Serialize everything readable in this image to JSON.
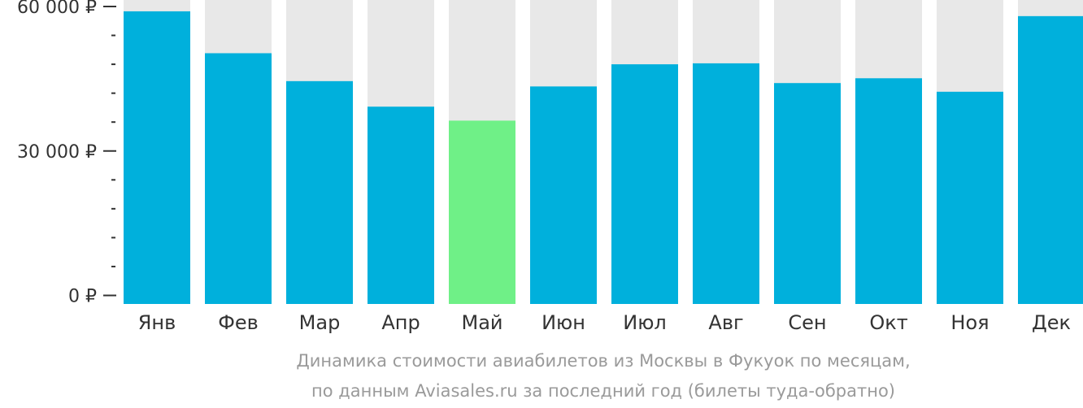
{
  "chart_data": {
    "type": "bar",
    "categories": [
      "Янв",
      "Фев",
      "Мар",
      "Апр",
      "Май",
      "Июн",
      "Июл",
      "Авг",
      "Сен",
      "Окт",
      "Ноя",
      "Дек"
    ],
    "values": [
      59000,
      50300,
      44500,
      39200,
      36300,
      43400,
      48000,
      48200,
      44100,
      45100,
      42300,
      58000
    ],
    "highlight_index": 4,
    "ylim": [
      0,
      62000
    ],
    "yticks": [
      {
        "value": 0,
        "label": "0 ₽"
      },
      {
        "value": 30000,
        "label": "30 000 ₽"
      },
      {
        "value": 60000,
        "label": "60 000 ₽"
      }
    ],
    "minor_tick_step": 6000,
    "caption_line1": "Динамика стоимости авиабилетов из Москвы в Фукуок по месяцам,",
    "caption_line2": "по данным Aviasales.ru за последний год (билеты туда-обратно)",
    "colors": {
      "bar": "#00b0dc",
      "highlight": "#6ff087",
      "background_bar": "#e8e8e8",
      "axis": "#333333",
      "caption": "#9a9a9a"
    }
  }
}
